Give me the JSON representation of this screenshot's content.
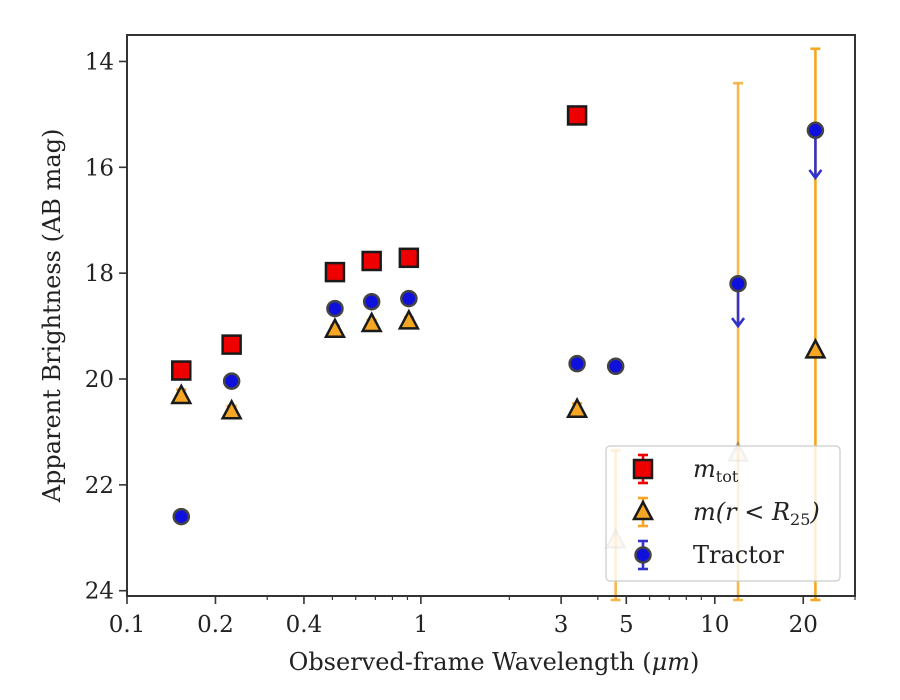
{
  "chart_data": {
    "type": "scatter",
    "title": "",
    "xlabel": "Observed-frame Wavelength (",
    "xlabel_unit": "μm",
    "xlabel_close": ")",
    "ylabel": "Apparent Brightness (AB mag)",
    "xscale": "log",
    "xlim": [
      0.1,
      30
    ],
    "ylim": [
      24.1,
      13.5
    ],
    "y_inverted": true,
    "grid": false,
    "legend_position": "lower-right",
    "x_ticks": [
      0.1,
      0.2,
      0.4,
      1,
      3,
      5,
      10,
      20
    ],
    "x_tick_labels": [
      "0.1",
      "0.2",
      "0.4",
      "1",
      "3",
      "5",
      "10",
      "20"
    ],
    "y_ticks": [
      14,
      16,
      18,
      20,
      22,
      24
    ],
    "y_tick_labels": [
      "14",
      "16",
      "18",
      "20",
      "22",
      "24"
    ],
    "series": [
      {
        "key": "mtot",
        "legend_main": "m",
        "legend_sub": "tot",
        "marker": "square",
        "color": "#ee0000",
        "edge_color": "#1a1a1a",
        "error_color": "#ee0000",
        "points": [
          {
            "x": 0.153,
            "y": 19.84,
            "yerr": 0.05
          },
          {
            "x": 0.227,
            "y": 19.35,
            "yerr": 0.05
          },
          {
            "x": 0.51,
            "y": 17.98,
            "yerr": 0.03
          },
          {
            "x": 0.68,
            "y": 17.77,
            "yerr": 0.03
          },
          {
            "x": 0.91,
            "y": 17.71,
            "yerr": 0.03
          },
          {
            "x": 3.4,
            "y": 15.02,
            "yerr": 0.05
          }
        ]
      },
      {
        "key": "mR25",
        "legend_main": "m(r < R",
        "legend_sub": "25",
        "legend_close": ")",
        "marker": "triangle",
        "color": "#f5a623",
        "edge_color": "#1a1a1a",
        "error_color": "#f5a623",
        "points": [
          {
            "x": 0.153,
            "y": 20.32,
            "yerr": 0.12,
            "faded": false
          },
          {
            "x": 0.227,
            "y": 20.61,
            "yerr": 0.1,
            "faded": false
          },
          {
            "x": 0.51,
            "y": 19.07,
            "yerr": 0.05,
            "faded": false
          },
          {
            "x": 0.68,
            "y": 18.96,
            "yerr": 0.05,
            "faded": false
          },
          {
            "x": 0.91,
            "y": 18.91,
            "yerr": 0.05,
            "faded": false
          },
          {
            "x": 3.4,
            "y": 20.58,
            "yerr": 0.12,
            "faded": false
          },
          {
            "x": 4.6,
            "y": 23.05,
            "yerr": 1.7,
            "faded": true
          },
          {
            "x": 12.0,
            "y": 21.41,
            "yerr": 7.0,
            "faded": true
          },
          {
            "x": 22.0,
            "y": 19.46,
            "yerr": 5.7,
            "faded": false
          }
        ]
      },
      {
        "key": "tractor",
        "legend_main": "Tractor",
        "marker": "circle",
        "color": "#1010dd",
        "edge_color": "#444444",
        "error_color": "#3333cc",
        "points": [
          {
            "x": 0.153,
            "y": 22.6,
            "yerr": 0.05,
            "upper_limit": false
          },
          {
            "x": 0.227,
            "y": 20.04,
            "yerr": 0.05,
            "upper_limit": false
          },
          {
            "x": 0.51,
            "y": 18.67,
            "yerr": 0.05,
            "upper_limit": false
          },
          {
            "x": 0.68,
            "y": 18.54,
            "yerr": 0.05,
            "upper_limit": false
          },
          {
            "x": 0.91,
            "y": 18.48,
            "yerr": 0.05,
            "upper_limit": false
          },
          {
            "x": 3.4,
            "y": 19.71,
            "yerr": 0.05,
            "upper_limit": false
          },
          {
            "x": 4.6,
            "y": 19.76,
            "yerr": 0.05,
            "upper_limit": false
          },
          {
            "x": 12.0,
            "y": 18.2,
            "yerr": 0,
            "upper_limit": true,
            "limit_to": 19.0
          },
          {
            "x": 22.0,
            "y": 15.3,
            "yerr": 0,
            "upper_limit": true,
            "limit_to": 16.2
          }
        ]
      }
    ]
  }
}
